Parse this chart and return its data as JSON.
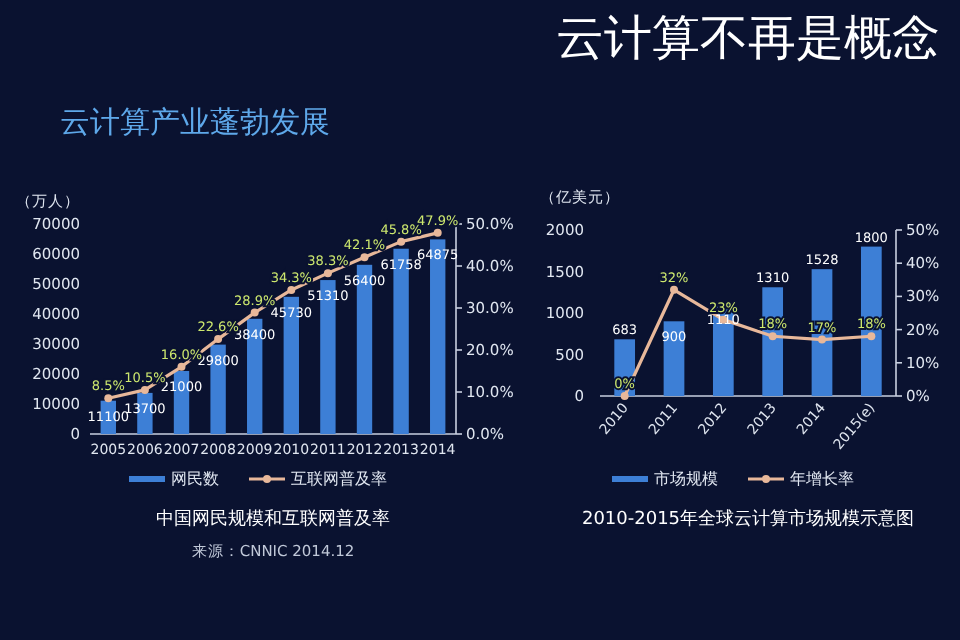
{
  "chart_data": [
    {
      "type": "other",
      "title": "云计算不再是概念",
      "subtitle": "云计算产业蓬勃发展"
    },
    {
      "type": "bar",
      "ylabel": "（万人）",
      "categories": [
        "2005",
        "2006",
        "2007",
        "2008",
        "2009",
        "2010",
        "2011",
        "2012",
        "2013",
        "2014"
      ],
      "series": [
        {
          "name": "网民数",
          "type": "bar",
          "color": "#3d7fd6",
          "values": [
            11100,
            13700,
            21000,
            29800,
            38400,
            45730,
            51310,
            56400,
            61758,
            64875
          ],
          "value_labels": [
            "11100",
            "13700",
            "21000",
            "29800",
            "38400",
            "45730",
            "51310",
            "56400",
            "61758",
            "64875"
          ]
        },
        {
          "name": "互联网普及率",
          "type": "line",
          "axis": "y2",
          "color": "#e8b89a",
          "marker": "circle",
          "values": [
            8.5,
            10.5,
            16.0,
            22.6,
            28.9,
            34.3,
            38.3,
            42.1,
            45.8,
            47.9
          ],
          "value_labels": [
            "8.5%",
            "10.5%",
            "16.0%",
            "22.6%",
            "28.9%",
            "34.3%",
            "38.3%",
            "42.1%",
            "45.8%",
            "47.9%"
          ]
        }
      ],
      "ylim": [
        0,
        70000
      ],
      "yticks": [
        0,
        10000,
        20000,
        30000,
        40000,
        50000,
        60000,
        70000
      ],
      "y2lim": [
        0,
        50
      ],
      "y2ticks": [
        {
          "value": 0,
          "label": "0.0%"
        },
        {
          "value": 10,
          "label": "10.0%"
        },
        {
          "value": 20,
          "label": "20.0%"
        },
        {
          "value": 30,
          "label": "30.0%"
        },
        {
          "value": 40,
          "label": "40.0%"
        },
        {
          "value": 50,
          "label": "50.0%"
        }
      ],
      "legend": "bottom",
      "annotations": [
        "中国网民规模和互联网普及率",
        "来源：CNNIC 2014.12"
      ]
    },
    {
      "type": "bar",
      "ylabel": "（亿美元）",
      "categories": [
        "2010",
        "2011",
        "2012",
        "2013",
        "2014",
        "2015(e)"
      ],
      "series": [
        {
          "name": "市场规模",
          "type": "bar",
          "color": "#3d7fd6",
          "values": [
            683,
            900,
            1110,
            1310,
            1528,
            1800
          ],
          "value_labels": [
            "683",
            "900",
            "1110",
            "1310",
            "1528",
            "1800"
          ]
        },
        {
          "name": "年增长率",
          "type": "line",
          "axis": "y2",
          "color": "#e8b89a",
          "marker": "circle",
          "values": [
            0,
            32,
            23,
            18,
            17,
            18
          ],
          "value_labels": [
            "0%",
            "32%",
            "23%",
            "18%",
            "17%",
            "18%"
          ]
        }
      ],
      "ylim": [
        0,
        2000
      ],
      "yticks": [
        0,
        500,
        1000,
        1500,
        2000
      ],
      "y2lim": [
        0,
        50
      ],
      "y2ticks": [
        {
          "value": 0,
          "label": "0%"
        },
        {
          "value": 10,
          "label": "10%"
        },
        {
          "value": 20,
          "label": "20%"
        },
        {
          "value": 30,
          "label": "30%"
        },
        {
          "value": 40,
          "label": "40%"
        },
        {
          "value": 50,
          "label": "50%"
        }
      ],
      "legend": "bottom",
      "annotations": [
        "2010-2015年全球云计算市场规模示意图"
      ]
    }
  ]
}
